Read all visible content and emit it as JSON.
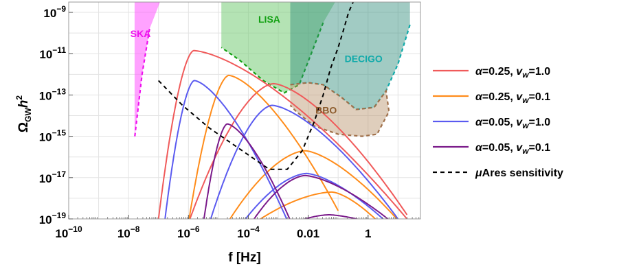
{
  "chart_data": {
    "type": "line",
    "xlabel": "f [Hz]",
    "ylabel_parts": {
      "main": "Ω",
      "sub": "GW",
      "mid": "h",
      "sup": "2"
    },
    "x_log10_range": [
      -10,
      1.75
    ],
    "y_log10_range": [
      -19,
      -8.5
    ],
    "x_scale": "log",
    "y_scale": "log",
    "grid": true,
    "legend_position": "right",
    "x_ticks": [
      {
        "exp": -10,
        "base": "10",
        "sup": "−10"
      },
      {
        "exp": -8,
        "base": "10",
        "sup": "−8"
      },
      {
        "exp": -6,
        "base": "10",
        "sup": "−6"
      },
      {
        "exp": -4,
        "base": "10",
        "sup": "−4"
      },
      {
        "exp": -2,
        "base": "0.01",
        "sup": ""
      },
      {
        "exp": 0,
        "base": "1",
        "sup": ""
      }
    ],
    "y_ticks": [
      {
        "exp": -9,
        "base": "10",
        "sup": "−9"
      },
      {
        "exp": -11,
        "base": "10",
        "sup": "−11"
      },
      {
        "exp": -13,
        "base": "10",
        "sup": "−13"
      },
      {
        "exp": -15,
        "base": "10",
        "sup": "−15"
      },
      {
        "exp": -17,
        "base": "10",
        "sup": "−17"
      },
      {
        "exp": -19,
        "base": "10",
        "sup": "−19"
      }
    ],
    "detectors": [
      {
        "name": "SKA",
        "fill": "#ff55ff",
        "opacity": 0.55,
        "stroke": "#ee11ee",
        "label_at": [
          -7.6,
          -10.2
        ],
        "label_color": "#ee11ee",
        "points": [
          [
            -7.8,
            -8.5
          ],
          [
            -6.95,
            -8.5
          ],
          [
            -7.3,
            -9.8
          ],
          [
            -7.55,
            -12.0
          ],
          [
            -7.8,
            -15.1
          ]
        ]
      },
      {
        "name": "LISA",
        "fill": "#77cc77",
        "opacity": 0.55,
        "stroke": "#11a011",
        "label_at": [
          -3.3,
          -9.5
        ],
        "label_color": "#11a011",
        "points": [
          [
            -4.9,
            -8.5
          ],
          [
            -1.1,
            -8.5
          ],
          [
            -1.5,
            -9.5
          ],
          [
            -1.9,
            -11.0
          ],
          [
            -2.3,
            -12.5
          ],
          [
            -2.8,
            -12.9
          ],
          [
            -3.5,
            -12.3
          ],
          [
            -4.3,
            -11.3
          ],
          [
            -4.9,
            -10.7
          ]
        ]
      },
      {
        "name": "DECIGO",
        "fill": "#2e8b7a",
        "opacity": 0.45,
        "stroke": "#11aaaa",
        "label_at": [
          -0.15,
          -11.4
        ],
        "label_color": "#11aaaa",
        "points": [
          [
            -2.6,
            -8.5
          ],
          [
            1.4,
            -8.5
          ],
          [
            1.4,
            -9.6
          ],
          [
            1.0,
            -11.5
          ],
          [
            0.6,
            -12.8
          ],
          [
            0.2,
            -13.6
          ],
          [
            -0.4,
            -13.7
          ],
          [
            -0.9,
            -13.1
          ],
          [
            -1.5,
            -12.5
          ],
          [
            -2.0,
            -12.4
          ],
          [
            -2.6,
            -12.5
          ]
        ]
      },
      {
        "name": "BBO",
        "fill": "#b8926a",
        "opacity": 0.45,
        "stroke": "#a0704a",
        "label_at": [
          -1.4,
          -13.9
        ],
        "label_color": "#8b5a2b",
        "points": [
          [
            -2.6,
            -12.5
          ],
          [
            -2.0,
            -12.4
          ],
          [
            -1.5,
            -12.5
          ],
          [
            -0.9,
            -13.1
          ],
          [
            -0.4,
            -13.7
          ],
          [
            0.2,
            -13.6
          ],
          [
            0.6,
            -12.8
          ],
          [
            0.7,
            -13.8
          ],
          [
            0.3,
            -14.9
          ],
          [
            -0.2,
            -15.0
          ],
          [
            -1.0,
            -14.9
          ],
          [
            -1.8,
            -14.5
          ],
          [
            -2.4,
            -13.8
          ],
          [
            -2.6,
            -13.5
          ]
        ]
      }
    ],
    "muares": {
      "name": "μAres sensitivity",
      "color": "#000000",
      "points": [
        [
          -7.0,
          -12.3
        ],
        [
          -6.2,
          -13.5
        ],
        [
          -5.3,
          -14.6
        ],
        [
          -4.5,
          -15.4
        ],
        [
          -3.8,
          -16.1
        ],
        [
          -3.3,
          -16.6
        ],
        [
          -2.7,
          -16.6
        ],
        [
          -2.2,
          -15.7
        ],
        [
          -1.8,
          -14.3
        ],
        [
          -1.5,
          -13.0
        ],
        [
          -1.25,
          -11.7
        ],
        [
          -1.0,
          -10.7
        ],
        [
          -0.85,
          -10.0
        ],
        [
          -0.65,
          -9.0
        ],
        [
          -0.5,
          -8.5
        ]
      ]
    },
    "series": [
      {
        "group": "α=0.25, vw=1.0",
        "color": "#f05a5a",
        "peak": [
          -5.82,
          -10.85
        ],
        "left": [
          -7.0,
          -19.0
        ],
        "right": [
          1.3,
          -19.0
        ]
      },
      {
        "group": "α=0.25, vw=1.0",
        "color": "#f05a5a",
        "peak": [
          -3.15,
          -12.45
        ],
        "left": [
          -6.0,
          -19.2
        ],
        "right": [
          1.3,
          -18.8
        ]
      },
      {
        "group": "α=0.25, vw=0.1",
        "color": "#ff8c1a",
        "peak": [
          -4.65,
          -12.05
        ],
        "left": [
          -6.0,
          -19.2
        ],
        "right": [
          -1.0,
          -18.6
        ]
      },
      {
        "group": "α=0.25, vw=0.1",
        "color": "#ff8c1a",
        "peak": [
          -2.1,
          -15.7
        ],
        "left": [
          -4.7,
          -19.2
        ],
        "right": [
          1.2,
          -19.4
        ]
      },
      {
        "group": "α=0.25, vw=0.1",
        "color": "#ff8c1a",
        "peak": [
          -1.2,
          -17.7
        ],
        "left": [
          -3.8,
          -19.2
        ],
        "right": [
          1.2,
          -20.5
        ]
      },
      {
        "group": "α=0.05, vw=1.0",
        "color": "#5a5af0",
        "peak": [
          -5.8,
          -12.3
        ],
        "left": [
          -6.8,
          -19.2
        ],
        "right": [
          -2.6,
          -19.4
        ]
      },
      {
        "group": "α=0.05, vw=1.0",
        "color": "#5a5af0",
        "peak": [
          -3.2,
          -13.5
        ],
        "left": [
          -5.3,
          -19.2
        ],
        "right": [
          1.2,
          -19.4
        ]
      },
      {
        "group": "α=0.05, vw=1.0",
        "color": "#5a5af0",
        "peak": [
          -2.05,
          -16.8
        ],
        "left": [
          -4.2,
          -19.2
        ],
        "right": [
          0.8,
          -19.4
        ]
      },
      {
        "group": "α=0.05, vw=0.1",
        "color": "#7a1a8a",
        "peak": [
          -4.7,
          -14.4
        ],
        "left": [
          -5.5,
          -19.2
        ],
        "right": [
          -2.5,
          -19.4
        ]
      },
      {
        "group": "α=0.05, vw=0.1",
        "color": "#7a1a8a",
        "peak": [
          -2.1,
          -16.9
        ],
        "left": [
          -3.9,
          -19.2
        ],
        "right": [
          1.0,
          -19.4
        ]
      },
      {
        "group": "α=0.05, vw=0.1",
        "color": "#7a1a8a",
        "peak": [
          -1.3,
          -18.8
        ],
        "left": [
          -2.5,
          -19.2
        ],
        "right": [
          0.6,
          -19.4
        ]
      }
    ],
    "legend": [
      {
        "color": "#f05a5a",
        "dash": false,
        "alpha": "α=0.25",
        "v": "v",
        "w": "w",
        "vval": "=1.0"
      },
      {
        "color": "#ff8c1a",
        "dash": false,
        "alpha": "α=0.25",
        "v": "v",
        "w": "w",
        "vval": "=0.1"
      },
      {
        "color": "#5a5af0",
        "dash": false,
        "alpha": "α=0.05",
        "v": "v",
        "w": "w",
        "vval": "=1.0"
      },
      {
        "color": "#7a1a8a",
        "dash": false,
        "alpha": "α=0.05",
        "v": "v",
        "w": "w",
        "vval": "=0.1"
      },
      {
        "color": "#000000",
        "dash": true,
        "mu": "μ",
        "rest": "Ares sensitivity"
      }
    ]
  }
}
